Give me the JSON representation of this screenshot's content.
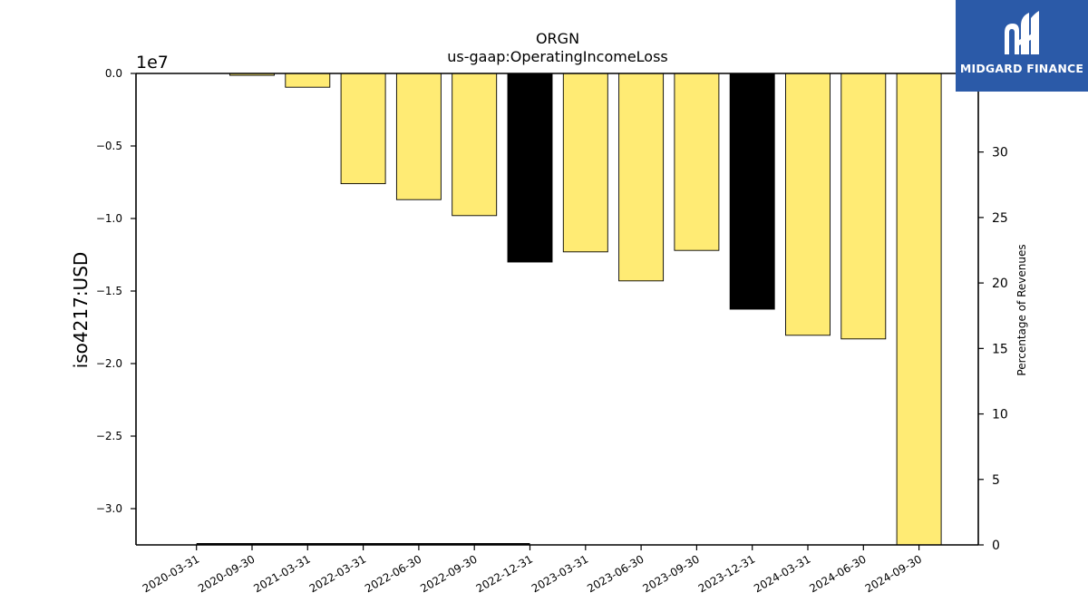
{
  "chart_data": {
    "type": "bar",
    "title": "ORGN",
    "subtitle": "us-gaap:OperatingIncomeLoss",
    "ylabel": "iso4217:USD",
    "y_offset_label": "1e7",
    "y2label": "Percentage of Revenues",
    "categories": [
      "2020-03-31",
      "2020-09-30",
      "2021-03-31",
      "2022-03-31",
      "2022-06-30",
      "2022-09-30",
      "2022-12-31",
      "2023-03-31",
      "2023-06-30",
      "2023-09-30",
      "2023-12-31",
      "2024-03-31",
      "2024-06-30",
      "2024-09-30"
    ],
    "values": [
      0,
      -130000,
      -950000,
      -7600000,
      -8700000,
      -9800000,
      -13000000,
      -12300000,
      -14300000,
      -12200000,
      -16250000,
      -18050000,
      -18300000,
      -32500000
    ],
    "bar_colors": [
      "#ffeb74",
      "#ffeb74",
      "#ffeb74",
      "#ffeb74",
      "#ffeb74",
      "#ffeb74",
      "#000000",
      "#ffeb74",
      "#ffeb74",
      "#ffeb74",
      "#000000",
      "#ffeb74",
      "#ffeb74",
      "#ffeb74"
    ],
    "yticks": [
      0.0,
      -0.5,
      -1.0,
      -1.5,
      -2.0,
      -2.5,
      -3.0
    ],
    "ytick_labels": [
      "0.0",
      "−0.5",
      "−1.0",
      "−1.5",
      "−2.0",
      "−2.5",
      "−3.0"
    ],
    "ylim": [
      -32500000,
      0
    ],
    "y2ticks": [
      0,
      5,
      10,
      15,
      20,
      25,
      30
    ],
    "y2lim": [
      0,
      36
    ],
    "percentage_line": {
      "x_start": "2020-03-31",
      "x_end": "2022-12-31",
      "value": 0
    },
    "grid": false
  },
  "logo": {
    "text": "MIDGARD FINANCE",
    "color": "#2b5aa8"
  }
}
